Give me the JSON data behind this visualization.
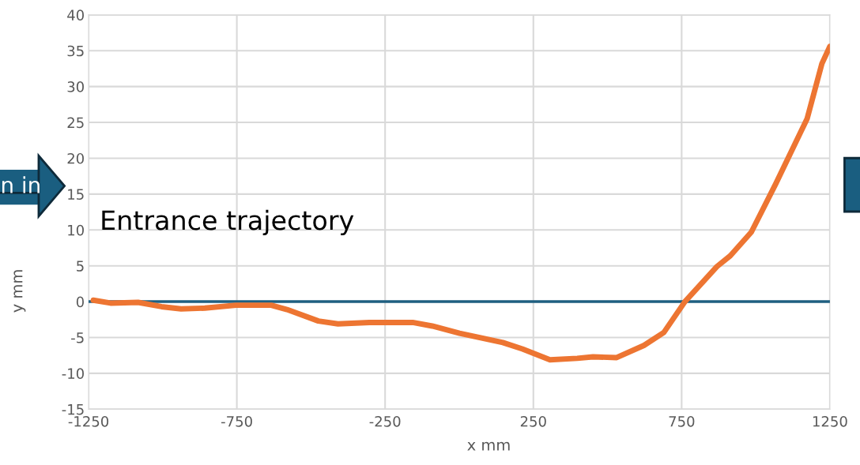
{
  "chart_data": {
    "type": "line",
    "xlabel": "x mm",
    "ylabel": "y mm",
    "annotations": [
      "Entrance trajectory",
      "n in"
    ],
    "series": [
      {
        "color": "#ed7532",
        "x": [
          -1234,
          -1176,
          -1083,
          -1004,
          -938,
          -858,
          -753,
          -634,
          -581,
          -475,
          -409,
          -303,
          -157,
          -91,
          1,
          147,
          213,
          306,
          398,
          451,
          531,
          623,
          690,
          761,
          869,
          914,
          985,
          1067,
          1173,
          1223,
          1250
        ],
        "values": [
          0.2,
          -0.2,
          -0.1,
          -0.7,
          -1.0,
          -0.9,
          -0.5,
          -0.5,
          -1.1,
          -2.7,
          -3.1,
          -2.9,
          -2.9,
          -3.4,
          -4.4,
          -5.7,
          -6.6,
          -8.1,
          -7.9,
          -7.7,
          -7.8,
          -6.1,
          -4.3,
          0,
          4.9,
          6.4,
          9.7,
          16.4,
          25.5,
          33.2,
          35.6
        ]
      }
    ],
    "xlim": [
      -1250,
      1250
    ],
    "xticks": [
      -1250,
      -750,
      -250,
      250,
      750,
      1250
    ],
    "ylim": [
      -15,
      40
    ],
    "yticks": [
      -15,
      -10,
      -5,
      0,
      5,
      10,
      15,
      20,
      25,
      30,
      35,
      40
    ],
    "ref_lines": [
      {
        "axis": "y",
        "value": 0,
        "color": "#1f5f80"
      }
    ],
    "grid": true,
    "marker": "none",
    "line_style": "solid"
  }
}
